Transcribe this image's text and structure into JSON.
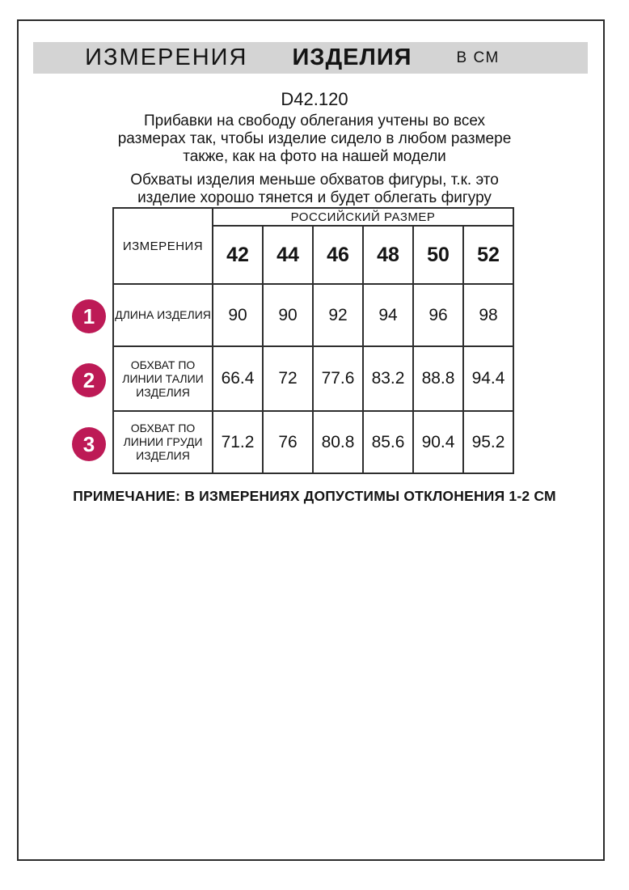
{
  "header": {
    "title_word1": "ИЗМЕРЕНИЯ",
    "title_word2": "ИЗДЕЛИЯ",
    "units_label": "В СМ"
  },
  "product_code": "D42.120",
  "paragraphs": [
    "Прибавки на свободу облегания учтены во всех размерах так, чтобы изделие сидело в любом размере также, как на фото на нашей модели",
    "Обхваты изделия меньше обхватов фигуры, т.к. это изделие хорошо тянется и будет облегать фигуру"
  ],
  "table": {
    "corner_header": "ИЗМЕРЕНИЯ",
    "group_header": "РОССИЙСКИЙ РАЗМЕР",
    "sizes": [
      "42",
      "44",
      "46",
      "48",
      "50",
      "52"
    ],
    "rows": [
      {
        "num": "1",
        "label": "ДЛИНА ИЗДЕЛИЯ",
        "values": [
          "90",
          "90",
          "92",
          "94",
          "96",
          "98"
        ]
      },
      {
        "num": "2",
        "label": "ОБХВАТ ПО ЛИНИИ ТАЛИИ ИЗДЕЛИЯ",
        "values": [
          "66.4",
          "72",
          "77.6",
          "83.2",
          "88.8",
          "94.4"
        ]
      },
      {
        "num": "3",
        "label": "ОБХВАТ ПО ЛИНИИ ГРУДИ ИЗДЕЛИЯ",
        "values": [
          "71.2",
          "76",
          "80.8",
          "85.6",
          "90.4",
          "95.2"
        ]
      }
    ]
  },
  "note": "ПРИМЕЧАНИЕ: В ИЗМЕРЕНИЯХ ДОПУСТИМЫ ОТКЛОНЕНИЯ 1-2 СМ",
  "colors": {
    "accent_circle": "#bd1a56",
    "title_bar_bg": "#d4d4d4",
    "table_border": "#2e2e2e"
  }
}
